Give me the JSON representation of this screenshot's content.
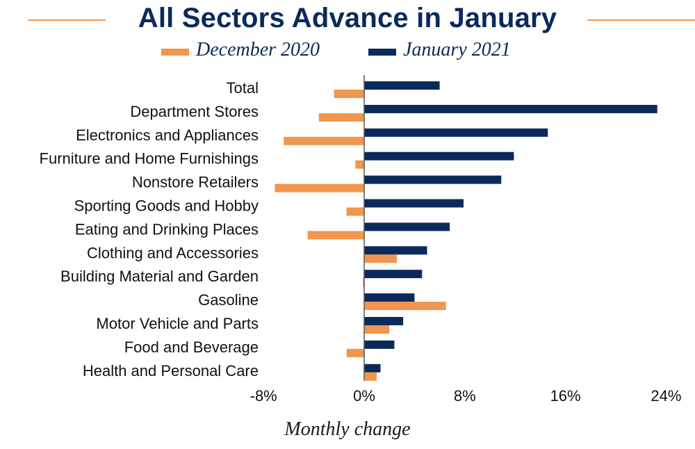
{
  "chart_data": {
    "type": "bar",
    "orientation": "horizontal",
    "title": "All Sectors Advance in January",
    "xlabel": "Monthly change",
    "ylabel": "",
    "xlim": [
      -8,
      24
    ],
    "ticks": [
      -8,
      0,
      8,
      16,
      24
    ],
    "tick_labels": [
      "-8%",
      "0%",
      "8%",
      "16%",
      "24%"
    ],
    "categories": [
      "Total",
      "Department Stores",
      "Electronics and Appliances",
      "Furniture and Home Furnishings",
      "Nonstore Retailers",
      "Sporting Goods and Hobby",
      "Eating and Drinking Places",
      "Clothing and Accessories",
      "Building Material and Garden",
      "Gasoline",
      "Motor Vehicle and Parts ",
      "Food and Beverage",
      "Health and Personal Care"
    ],
    "series": [
      {
        "name": "January 2021",
        "color": "#0b2a5b",
        "values": [
          6.0,
          23.3,
          14.6,
          11.9,
          10.9,
          7.9,
          6.8,
          5.0,
          4.6,
          4.0,
          3.1,
          2.4,
          1.3
        ]
      },
      {
        "name": "December 2020",
        "color": "#f0964e",
        "values": [
          -2.4,
          -3.6,
          -6.4,
          -0.7,
          -7.1,
          -1.4,
          -4.5,
          2.6,
          -0.1,
          6.5,
          2.0,
          -1.4,
          1.0
        ]
      }
    ],
    "legend": [
      "December 2020",
      "January 2021"
    ],
    "legend_position": "top",
    "grid": false
  },
  "colors": {
    "navy": "#0b2a5b",
    "orange": "#f0964e"
  }
}
